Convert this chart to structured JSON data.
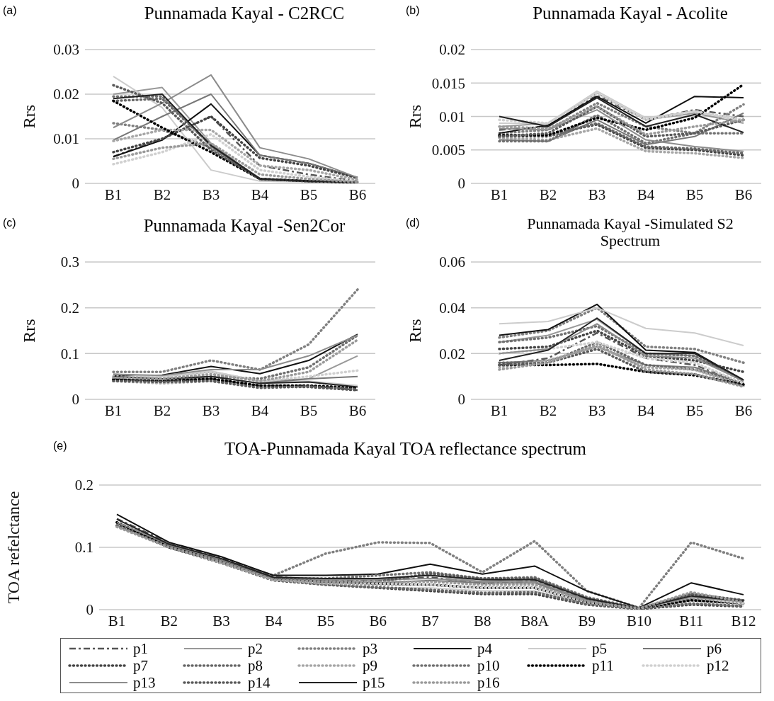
{
  "chart_data": [
    {
      "type": "line",
      "title": "Punnamada Kayal - C2RCC",
      "ylabel": "Rrs",
      "annotations": [
        "(a)"
      ],
      "categories": [
        "B1",
        "B2",
        "B3",
        "B4",
        "B5",
        "B6"
      ],
      "ylim": [
        0,
        0.03
      ],
      "yticks": [
        0,
        0.01,
        0.02,
        0.03
      ],
      "grid": "y",
      "series": [
        {
          "color": "#555555",
          "line_style": "dashed",
          "values": [
            0.006,
            0.01,
            0.015,
            0.004,
            0.002,
            0.0005
          ]
        },
        {
          "color": "#999999",
          "line_style": "solid",
          "values": [
            0.02,
            0.0215,
            0.009,
            0.0008,
            0.0005,
            0.0003
          ]
        },
        {
          "color": "#808080",
          "line_style": "dotted",
          "values": [
            0.0135,
            0.012,
            0.008,
            0.001,
            0.0005,
            0.0003
          ]
        },
        {
          "color": "#111111",
          "line_style": "solid",
          "values": [
            0.006,
            0.0097,
            0.0178,
            0.0063,
            0.0045,
            0.0013
          ]
        },
        {
          "color": "#cccccc",
          "line_style": "solid",
          "values": [
            0.024,
            0.017,
            0.003,
            0.0005,
            0.0003,
            0.0002
          ]
        },
        {
          "color": "#777777",
          "line_style": "solid",
          "values": [
            0.0097,
            0.015,
            0.02,
            0.0063,
            0.0045,
            0.0013
          ]
        },
        {
          "color": "#444444",
          "line_style": "dotted",
          "values": [
            0.007,
            0.01,
            0.015,
            0.0057,
            0.004,
            0.0012
          ]
        },
        {
          "color": "#666666",
          "line_style": "dotted",
          "values": [
            0.0185,
            0.019,
            0.0085,
            0.001,
            0.0005,
            0.0003
          ]
        },
        {
          "color": "#a6a6a6",
          "line_style": "dotted",
          "values": [
            0.0095,
            0.012,
            0.012,
            0.004,
            0.003,
            0.0008
          ]
        },
        {
          "color": "#707070",
          "line_style": "dotted",
          "values": [
            0.0195,
            0.0195,
            0.0085,
            0.001,
            0.0005,
            0.0003
          ]
        },
        {
          "color": "#000000",
          "line_style": "dotted",
          "values": [
            0.0185,
            0.0125,
            0.007,
            0.001,
            0.0005,
            0.0002
          ]
        },
        {
          "color": "#d0d0d0",
          "line_style": "dotted",
          "values": [
            0.0043,
            0.007,
            0.011,
            0.003,
            0.0015,
            0.0004
          ]
        },
        {
          "color": "#8c8c8c",
          "line_style": "solid",
          "values": [
            0.0125,
            0.018,
            0.0243,
            0.008,
            0.0055,
            0.0013
          ]
        },
        {
          "color": "#5a5a5a",
          "line_style": "dotted",
          "values": [
            0.022,
            0.018,
            0.0075,
            0.001,
            0.0005,
            0.0003
          ]
        },
        {
          "color": "#222222",
          "line_style": "solid",
          "values": [
            0.019,
            0.02,
            0.0085,
            0.001,
            0.0005,
            0.0003
          ]
        },
        {
          "color": "#9a9a9a",
          "line_style": "dotted",
          "values": [
            0.0055,
            0.008,
            0.009,
            0.002,
            0.001,
            0.0003
          ]
        }
      ]
    },
    {
      "type": "line",
      "title": "Punnamada Kayal - Acolite",
      "ylabel": "Rrs",
      "annotations": [
        "(b)"
      ],
      "categories": [
        "B1",
        "B2",
        "B3",
        "B4",
        "B5",
        "B6"
      ],
      "ylim": [
        0,
        0.02
      ],
      "yticks": [
        0,
        0.005,
        0.01,
        0.015,
        0.02
      ],
      "grid": "y",
      "series": [
        {
          "color": "#555555",
          "line_style": "dashed",
          "values": [
            0.008,
            0.0085,
            0.0132,
            0.0095,
            0.011,
            0.01
          ]
        },
        {
          "color": "#999999",
          "line_style": "solid",
          "values": [
            0.0085,
            0.009,
            0.0135,
            0.0095,
            0.0105,
            0.009
          ]
        },
        {
          "color": "#808080",
          "line_style": "dotted",
          "values": [
            0.0075,
            0.008,
            0.012,
            0.0085,
            0.0075,
            0.0118
          ]
        },
        {
          "color": "#111111",
          "line_style": "solid",
          "values": [
            0.0075,
            0.0087,
            0.013,
            0.009,
            0.013,
            0.0128
          ]
        },
        {
          "color": "#cccccc",
          "line_style": "solid",
          "values": [
            0.009,
            0.009,
            0.0138,
            0.0098,
            0.0108,
            0.0092
          ]
        },
        {
          "color": "#777777",
          "line_style": "solid",
          "values": [
            0.0065,
            0.0063,
            0.0095,
            0.0058,
            0.007,
            0.0105
          ]
        },
        {
          "color": "#444444",
          "line_style": "dotted",
          "values": [
            0.0072,
            0.0073,
            0.0088,
            0.0053,
            0.005,
            0.0042
          ]
        },
        {
          "color": "#666666",
          "line_style": "dotted",
          "values": [
            0.007,
            0.007,
            0.009,
            0.0055,
            0.0052,
            0.0045
          ]
        },
        {
          "color": "#a6a6a6",
          "line_style": "dotted",
          "values": [
            0.0068,
            0.0065,
            0.0082,
            0.0048,
            0.0045,
            0.0038
          ]
        },
        {
          "color": "#707070",
          "line_style": "dotted",
          "values": [
            0.0063,
            0.0063,
            0.0102,
            0.006,
            0.0075,
            0.0075
          ]
        },
        {
          "color": "#000000",
          "line_style": "dotted",
          "values": [
            0.0072,
            0.0072,
            0.0098,
            0.008,
            0.0098,
            0.0148
          ]
        },
        {
          "color": "#d0d0d0",
          "line_style": "dotted",
          "values": [
            0.0095,
            0.009,
            0.0135,
            0.0095,
            0.0108,
            0.0095
          ]
        },
        {
          "color": "#8c8c8c",
          "line_style": "solid",
          "values": [
            0.0082,
            0.008,
            0.011,
            0.0065,
            0.0055,
            0.0048
          ]
        },
        {
          "color": "#5a5a5a",
          "line_style": "dotted",
          "values": [
            0.007,
            0.0075,
            0.0115,
            0.007,
            0.0075,
            0.0095
          ]
        },
        {
          "color": "#222222",
          "line_style": "solid",
          "values": [
            0.01,
            0.0085,
            0.0128,
            0.0085,
            0.0103,
            0.0076
          ]
        },
        {
          "color": "#9a9a9a",
          "line_style": "dotted",
          "values": [
            0.0085,
            0.0082,
            0.0115,
            0.0073,
            0.0085,
            0.0095
          ]
        }
      ]
    },
    {
      "type": "line",
      "title": "Punnamada Kayal -Sen2Cor",
      "ylabel": "Rrs",
      "annotations": [
        "(c)"
      ],
      "categories": [
        "B1",
        "B2",
        "B3",
        "B4",
        "B5",
        "B6"
      ],
      "ylim": [
        0,
        0.3
      ],
      "yticks": [
        0,
        0.1,
        0.2,
        0.3
      ],
      "grid": "y",
      "series": [
        {
          "color": "#555555",
          "line_style": "dashed",
          "values": [
            0.045,
            0.04,
            0.045,
            0.03,
            0.03,
            0.02
          ]
        },
        {
          "color": "#999999",
          "line_style": "solid",
          "values": [
            0.055,
            0.05,
            0.06,
            0.04,
            0.045,
            0.095
          ]
        },
        {
          "color": "#808080",
          "line_style": "dotted",
          "values": [
            0.06,
            0.06,
            0.085,
            0.065,
            0.12,
            0.24
          ]
        },
        {
          "color": "#111111",
          "line_style": "solid",
          "values": [
            0.052,
            0.053,
            0.072,
            0.056,
            0.085,
            0.142
          ]
        },
        {
          "color": "#cccccc",
          "line_style": "solid",
          "values": [
            0.055,
            0.05,
            0.062,
            0.04,
            0.04,
            0.03
          ]
        },
        {
          "color": "#777777",
          "line_style": "solid",
          "values": [
            0.045,
            0.04,
            0.05,
            0.035,
            0.045,
            0.05
          ]
        },
        {
          "color": "#444444",
          "line_style": "dotted",
          "values": [
            0.043,
            0.038,
            0.043,
            0.028,
            0.027,
            0.02
          ]
        },
        {
          "color": "#666666",
          "line_style": "dotted",
          "values": [
            0.045,
            0.04,
            0.045,
            0.03,
            0.028,
            0.022
          ]
        },
        {
          "color": "#a6a6a6",
          "line_style": "dotted",
          "values": [
            0.04,
            0.035,
            0.04,
            0.027,
            0.03,
            0.025
          ]
        },
        {
          "color": "#707070",
          "line_style": "dotted",
          "values": [
            0.05,
            0.045,
            0.05,
            0.045,
            0.07,
            0.14
          ]
        },
        {
          "color": "#000000",
          "line_style": "dotted",
          "values": [
            0.043,
            0.04,
            0.045,
            0.03,
            0.03,
            0.025
          ]
        },
        {
          "color": "#d0d0d0",
          "line_style": "dotted",
          "values": [
            0.05,
            0.045,
            0.06,
            0.04,
            0.05,
            0.063
          ]
        },
        {
          "color": "#8c8c8c",
          "line_style": "solid",
          "values": [
            0.055,
            0.052,
            0.065,
            0.065,
            0.095,
            0.14
          ]
        },
        {
          "color": "#5a5a5a",
          "line_style": "dotted",
          "values": [
            0.04,
            0.038,
            0.04,
            0.025,
            0.028,
            0.022
          ]
        },
        {
          "color": "#222222",
          "line_style": "solid",
          "values": [
            0.05,
            0.045,
            0.05,
            0.035,
            0.038,
            0.027
          ]
        },
        {
          "color": "#9a9a9a",
          "line_style": "dotted",
          "values": [
            0.048,
            0.045,
            0.055,
            0.04,
            0.06,
            0.13
          ]
        }
      ]
    },
    {
      "type": "line",
      "title": "Punnamada Kayal -Simulated S2 Spectrum",
      "ylabel": "Rrs",
      "annotations": [
        "(d)"
      ],
      "categories": [
        "B1",
        "B2",
        "B3",
        "B4",
        "B5",
        "B6"
      ],
      "ylim": [
        0,
        0.06
      ],
      "yticks": [
        0,
        0.02,
        0.04,
        0.06
      ],
      "grid": "y",
      "series": [
        {
          "color": "#555555",
          "line_style": "dashed",
          "values": [
            0.015,
            0.018,
            0.029,
            0.018,
            0.015,
            0.007
          ]
        },
        {
          "color": "#999999",
          "line_style": "solid",
          "values": [
            0.025,
            0.028,
            0.035,
            0.02,
            0.019,
            0.008
          ]
        },
        {
          "color": "#808080",
          "line_style": "dotted",
          "values": [
            0.027,
            0.03,
            0.04,
            0.023,
            0.022,
            0.016
          ]
        },
        {
          "color": "#111111",
          "line_style": "solid",
          "values": [
            0.028,
            0.0305,
            0.0415,
            0.0215,
            0.0205,
            0.0085
          ]
        },
        {
          "color": "#cccccc",
          "line_style": "solid",
          "values": [
            0.033,
            0.034,
            0.04,
            0.031,
            0.029,
            0.0235
          ]
        },
        {
          "color": "#777777",
          "line_style": "solid",
          "values": [
            0.016,
            0.017,
            0.023,
            0.015,
            0.014,
            0.007
          ]
        },
        {
          "color": "#444444",
          "line_style": "dotted",
          "values": [
            0.022,
            0.023,
            0.03,
            0.019,
            0.017,
            0.012
          ]
        },
        {
          "color": "#666666",
          "line_style": "dotted",
          "values": [
            0.016,
            0.016,
            0.025,
            0.015,
            0.013,
            0.007
          ]
        },
        {
          "color": "#a6a6a6",
          "line_style": "dotted",
          "values": [
            0.014,
            0.017,
            0.023,
            0.014,
            0.013,
            0.006
          ]
        },
        {
          "color": "#707070",
          "line_style": "dotted",
          "values": [
            0.025,
            0.027,
            0.032,
            0.02,
            0.019,
            0.008
          ]
        },
        {
          "color": "#000000",
          "line_style": "dotted",
          "values": [
            0.015,
            0.015,
            0.0155,
            0.012,
            0.0105,
            0.0065
          ]
        },
        {
          "color": "#d0d0d0",
          "line_style": "dotted",
          "values": [
            0.02,
            0.022,
            0.025,
            0.018,
            0.016,
            0.007
          ]
        },
        {
          "color": "#8c8c8c",
          "line_style": "solid",
          "values": [
            0.02,
            0.022,
            0.033,
            0.019,
            0.018,
            0.008
          ]
        },
        {
          "color": "#5a5a5a",
          "line_style": "dotted",
          "values": [
            0.015,
            0.016,
            0.022,
            0.012,
            0.011,
            0.006
          ]
        },
        {
          "color": "#222222",
          "line_style": "solid",
          "values": [
            0.017,
            0.0215,
            0.0355,
            0.02,
            0.02,
            0.0085
          ]
        },
        {
          "color": "#9a9a9a",
          "line_style": "dotted",
          "values": [
            0.013,
            0.016,
            0.024,
            0.013,
            0.011,
            0.0055
          ]
        }
      ]
    },
    {
      "type": "line",
      "title": "TOA-Punnamada Kayal TOA reflectance spectrum",
      "ylabel": "TOA refelctance",
      "annotations": [
        "(e)"
      ],
      "categories": [
        "B1",
        "B2",
        "B3",
        "B4",
        "B5",
        "B6",
        "B7",
        "B8",
        "B8A",
        "B9",
        "B10",
        "B11",
        "B12"
      ],
      "ylim": [
        0,
        0.2
      ],
      "yticks": [
        0,
        0.1,
        0.2
      ],
      "grid": "y",
      "legend": "bottom",
      "series": [
        {
          "name": "p1",
          "color": "#555555",
          "line_style": "dashed",
          "values": [
            0.146,
            0.107,
            0.083,
            0.053,
            0.047,
            0.047,
            0.052,
            0.042,
            0.046,
            0.016,
            0.002,
            0.019,
            0.012
          ]
        },
        {
          "name": "p2",
          "color": "#999999",
          "line_style": "solid",
          "values": [
            0.14,
            0.105,
            0.08,
            0.05,
            0.048,
            0.05,
            0.055,
            0.045,
            0.05,
            0.018,
            0.002,
            0.022,
            0.015
          ]
        },
        {
          "name": "p3",
          "color": "#808080",
          "line_style": "dotted",
          "values": [
            0.14,
            0.1,
            0.08,
            0.055,
            0.09,
            0.108,
            0.107,
            0.06,
            0.11,
            0.03,
            0.003,
            0.108,
            0.082
          ]
        },
        {
          "name": "p4",
          "color": "#111111",
          "line_style": "solid",
          "values": [
            0.153,
            0.108,
            0.085,
            0.055,
            0.055,
            0.057,
            0.073,
            0.057,
            0.07,
            0.03,
            0.003,
            0.043,
            0.024
          ]
        },
        {
          "name": "p5",
          "color": "#cccccc",
          "line_style": "solid",
          "values": [
            0.135,
            0.1,
            0.075,
            0.048,
            0.04,
            0.035,
            0.035,
            0.03,
            0.03,
            0.01,
            0.002,
            0.01,
            0.006
          ]
        },
        {
          "name": "p6",
          "color": "#777777",
          "line_style": "solid",
          "values": [
            0.138,
            0.103,
            0.079,
            0.049,
            0.044,
            0.043,
            0.047,
            0.043,
            0.043,
            0.014,
            0.002,
            0.017,
            0.011
          ]
        },
        {
          "name": "p7",
          "color": "#444444",
          "line_style": "dotted",
          "values": [
            0.135,
            0.1,
            0.075,
            0.047,
            0.04,
            0.035,
            0.03,
            0.025,
            0.025,
            0.008,
            0.001,
            0.008,
            0.005
          ]
        },
        {
          "name": "p8",
          "color": "#666666",
          "line_style": "dotted",
          "values": [
            0.135,
            0.1,
            0.075,
            0.048,
            0.04,
            0.036,
            0.032,
            0.027,
            0.028,
            0.009,
            0.001,
            0.01,
            0.006
          ]
        },
        {
          "name": "p9",
          "color": "#a6a6a6",
          "line_style": "dotted",
          "values": [
            0.133,
            0.1,
            0.075,
            0.048,
            0.042,
            0.04,
            0.04,
            0.035,
            0.035,
            0.012,
            0.002,
            0.015,
            0.01
          ]
        },
        {
          "name": "p10",
          "color": "#707070",
          "line_style": "dotted",
          "values": [
            0.14,
            0.105,
            0.08,
            0.05,
            0.05,
            0.055,
            0.06,
            0.05,
            0.052,
            0.02,
            0.002,
            0.025,
            0.015
          ]
        },
        {
          "name": "p11",
          "color": "#000000",
          "line_style": "dotted",
          "values": [
            0.14,
            0.1,
            0.078,
            0.05,
            0.045,
            0.042,
            0.04,
            0.035,
            0.035,
            0.012,
            0.002,
            0.015,
            0.01
          ]
        },
        {
          "name": "p12",
          "color": "#d0d0d0",
          "line_style": "dotted",
          "values": [
            0.135,
            0.1,
            0.078,
            0.048,
            0.045,
            0.042,
            0.04,
            0.035,
            0.035,
            0.012,
            0.002,
            0.02,
            0.01
          ]
        },
        {
          "name": "p13",
          "color": "#8c8c8c",
          "line_style": "solid",
          "values": [
            0.14,
            0.105,
            0.08,
            0.05,
            0.048,
            0.048,
            0.05,
            0.045,
            0.045,
            0.015,
            0.002,
            0.02,
            0.013
          ]
        },
        {
          "name": "p14",
          "color": "#5a5a5a",
          "line_style": "dotted",
          "values": [
            0.135,
            0.1,
            0.078,
            0.05,
            0.045,
            0.045,
            0.058,
            0.05,
            0.05,
            0.018,
            0.002,
            0.025,
            0.015
          ]
        },
        {
          "name": "p15",
          "color": "#222222",
          "line_style": "solid",
          "values": [
            0.145,
            0.105,
            0.082,
            0.052,
            0.05,
            0.05,
            0.055,
            0.048,
            0.048,
            0.018,
            0.002,
            0.022,
            0.014
          ]
        },
        {
          "name": "p16",
          "color": "#9a9a9a",
          "line_style": "dotted",
          "values": [
            0.133,
            0.1,
            0.077,
            0.048,
            0.045,
            0.045,
            0.045,
            0.04,
            0.04,
            0.013,
            0.002,
            0.028,
            0.012
          ]
        }
      ]
    }
  ]
}
